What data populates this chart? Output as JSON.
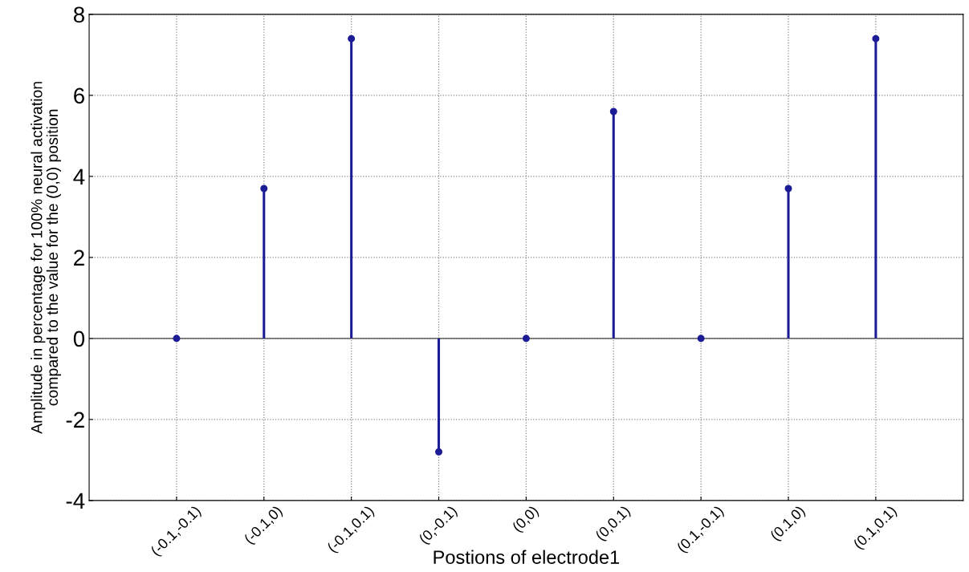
{
  "chart_data": {
    "type": "lollipop",
    "xlabel": "Postions of electrode1",
    "ylabel": "Amplitude in percentage for 100% neural activation\ncompared to the value for the (0,0) position",
    "categories": [
      "(-0.1,-0.1)",
      "(-0.1,0)",
      "(-0.1,0.1)",
      "(0,-0.1)",
      "(0,0)",
      "(0,0.1)",
      "(0.1,-0.1)",
      "(0.1,0)",
      "(0.1,0.1)"
    ],
    "series": [
      {
        "color": "#1c1c96",
        "values": [
          0,
          3.7,
          7.4,
          -2.8,
          0,
          5.6,
          0,
          3.7,
          7.4
        ]
      }
    ],
    "ylim": [
      -4,
      8
    ],
    "yticks": [
      -4,
      -2,
      0,
      2,
      4,
      6,
      8
    ],
    "grid": true,
    "marker": "circle",
    "line_style": "solid"
  }
}
